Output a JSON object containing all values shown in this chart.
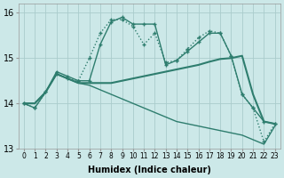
{
  "xlabel": "Humidex (Indice chaleur)",
  "xlim": [
    -0.5,
    23.5
  ],
  "ylim": [
    13.0,
    16.2
  ],
  "yticks": [
    13,
    14,
    15,
    16
  ],
  "xticks": [
    0,
    1,
    2,
    3,
    4,
    5,
    6,
    7,
    8,
    9,
    10,
    11,
    12,
    13,
    14,
    15,
    16,
    17,
    18,
    19,
    20,
    21,
    22,
    23
  ],
  "bg_color": "#cce8e8",
  "grid_color": "#aacccc",
  "line_color": "#2e7d6e",
  "lines": [
    {
      "x": [
        0,
        1,
        2,
        3,
        4,
        5,
        6,
        7,
        8,
        9,
        10,
        11,
        12,
        13,
        14,
        15,
        16,
        17,
        18,
        19,
        20,
        21,
        22,
        23
      ],
      "y": [
        14.0,
        13.9,
        14.25,
        14.7,
        14.6,
        14.5,
        14.5,
        15.3,
        15.8,
        15.9,
        15.75,
        15.75,
        15.75,
        14.85,
        14.95,
        15.15,
        15.35,
        15.55,
        15.55,
        15.05,
        14.2,
        13.9,
        13.6,
        13.55
      ],
      "marker": "+",
      "linestyle": "-",
      "linewidth": 1.0
    },
    {
      "x": [
        0,
        1,
        2,
        3,
        4,
        5,
        6,
        7,
        8,
        9,
        10,
        11,
        12,
        13,
        14,
        15,
        16,
        17,
        18,
        19,
        20,
        21,
        22,
        23
      ],
      "y": [
        14.0,
        13.9,
        14.25,
        14.65,
        14.55,
        14.5,
        15.0,
        15.55,
        15.85,
        15.85,
        15.7,
        15.3,
        15.55,
        14.9,
        14.95,
        15.2,
        15.45,
        15.6,
        15.55,
        15.05,
        14.2,
        13.9,
        13.15,
        13.55
      ],
      "marker": "+",
      "linestyle": ":",
      "linewidth": 1.0
    },
    {
      "x": [
        0,
        1,
        2,
        3,
        4,
        5,
        6,
        7,
        8,
        9,
        10,
        11,
        12,
        13,
        14,
        15,
        16,
        17,
        18,
        19,
        20,
        21,
        22,
        23
      ],
      "y": [
        14.0,
        14.0,
        14.25,
        14.65,
        14.55,
        14.45,
        14.45,
        14.45,
        14.45,
        14.5,
        14.55,
        14.6,
        14.65,
        14.7,
        14.75,
        14.8,
        14.85,
        14.92,
        14.98,
        15.0,
        15.05,
        14.2,
        13.6,
        13.55
      ],
      "marker": null,
      "linestyle": "-",
      "linewidth": 1.5
    },
    {
      "x": [
        0,
        1,
        2,
        3,
        4,
        5,
        6,
        7,
        8,
        9,
        10,
        11,
        12,
        13,
        14,
        15,
        16,
        17,
        18,
        19,
        20,
        21,
        22,
        23
      ],
      "y": [
        14.0,
        14.0,
        14.25,
        14.65,
        14.55,
        14.45,
        14.4,
        14.3,
        14.2,
        14.1,
        14.0,
        13.9,
        13.8,
        13.7,
        13.6,
        13.55,
        13.5,
        13.45,
        13.4,
        13.35,
        13.3,
        13.2,
        13.1,
        13.5
      ],
      "marker": null,
      "linestyle": "-",
      "linewidth": 1.0
    }
  ]
}
